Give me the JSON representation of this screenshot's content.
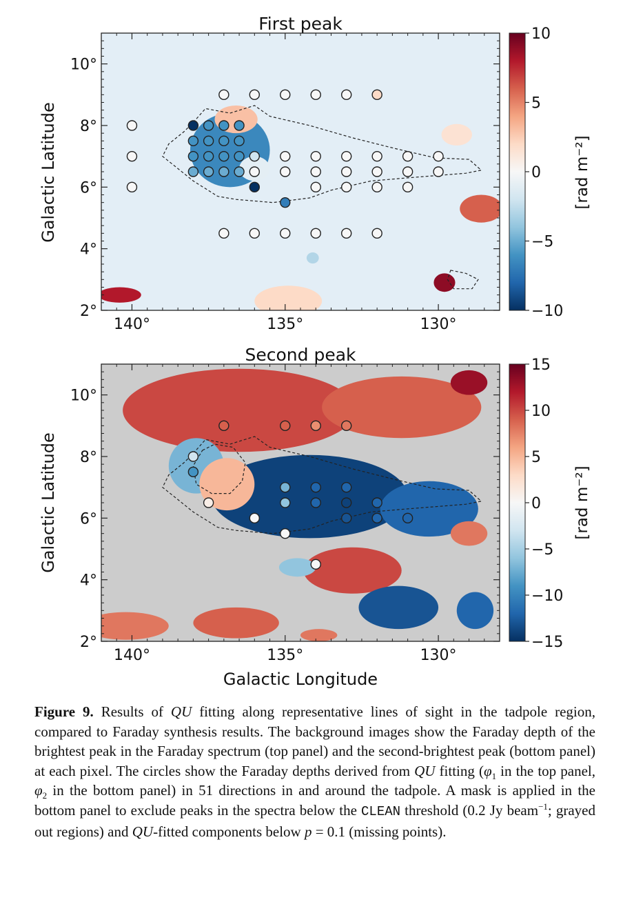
{
  "figure": {
    "x_axis_label": "Galactic Longitude",
    "y_axis_label": "Galactic Latitude",
    "colorbar_unit": "[rad m⁻²]"
  },
  "chart_data": [
    {
      "type": "heatmap",
      "title": "First peak",
      "xlabel": "",
      "ylabel": "Galactic Latitude",
      "xlim": [
        141,
        128
      ],
      "ylim": [
        2,
        11
      ],
      "x_ticks": [
        "140°",
        "135°",
        "130°"
      ],
      "x_tick_values": [
        140,
        135,
        130
      ],
      "y_ticks": [
        "2°",
        "4°",
        "6°",
        "8°",
        "10°"
      ],
      "y_tick_values": [
        2,
        4,
        6,
        8,
        10
      ],
      "colorbar": {
        "min": -10,
        "max": 10,
        "ticks": [
          "−10",
          "−5",
          "0",
          "5",
          "10"
        ],
        "tick_values": [
          -10,
          -5,
          0,
          5,
          10
        ],
        "label": "[rad m⁻²]",
        "colormap": "RdBu_r"
      },
      "background_regions": [
        {
          "kind": "ellipse",
          "l": 136.8,
          "b": 7.2,
          "rl": 1.3,
          "rb": 1.2,
          "value": -6.5
        },
        {
          "kind": "ellipse",
          "l": 136.6,
          "b": 8.2,
          "rl": 0.7,
          "rb": 0.45,
          "value": 3
        },
        {
          "kind": "ellipse",
          "l": 136.0,
          "b": 6.6,
          "rl": 0.5,
          "rb": 0.4,
          "value": -1
        },
        {
          "kind": "ellipse",
          "l": 128.6,
          "b": 5.3,
          "rl": 0.7,
          "rb": 0.45,
          "value": 6
        },
        {
          "kind": "ellipse",
          "l": 129.4,
          "b": 7.7,
          "rl": 0.5,
          "rb": 0.35,
          "value": 1.5
        },
        {
          "kind": "ellipse",
          "l": 129.8,
          "b": 2.9,
          "rl": 0.35,
          "rb": 0.3,
          "value": 9
        },
        {
          "kind": "ellipse",
          "l": 134.9,
          "b": 2.3,
          "rl": 1.1,
          "rb": 0.5,
          "value": 2
        },
        {
          "kind": "ellipse",
          "l": 140.4,
          "b": 2.5,
          "rl": 0.7,
          "rb": 0.25,
          "value": 8
        },
        {
          "kind": "ellipse",
          "l": 134.1,
          "b": 3.7,
          "rl": 0.2,
          "rb": 0.18,
          "value": -3
        }
      ],
      "contour": [
        [
          138.0,
          8.1
        ],
        [
          137.6,
          8.55
        ],
        [
          136.8,
          8.4
        ],
        [
          136.0,
          8.65
        ],
        [
          135.5,
          8.3
        ],
        [
          134.2,
          8.0
        ],
        [
          132.8,
          7.6
        ],
        [
          131.4,
          7.25
        ],
        [
          130.1,
          6.95
        ],
        [
          129.0,
          6.9
        ],
        [
          128.6,
          6.55
        ],
        [
          129.1,
          6.45
        ],
        [
          131.0,
          6.3
        ],
        [
          132.2,
          6.2
        ],
        [
          133.5,
          5.9
        ],
        [
          134.2,
          5.65
        ],
        [
          135.4,
          5.5
        ],
        [
          136.6,
          5.6
        ],
        [
          137.2,
          5.7
        ],
        [
          138.0,
          6.2
        ],
        [
          138.5,
          6.6
        ],
        [
          139.0,
          7.0
        ],
        [
          138.8,
          7.4
        ],
        [
          138.3,
          7.8
        ]
      ],
      "contour2": [
        [
          129.6,
          3.3
        ],
        [
          129.1,
          3.2
        ],
        [
          128.7,
          3.0
        ],
        [
          128.9,
          2.7
        ],
        [
          129.5,
          2.7
        ],
        [
          129.7,
          3.0
        ]
      ],
      "points": [
        {
          "l": 137.0,
          "b": 9.0,
          "v": 0
        },
        {
          "l": 136.0,
          "b": 9.0,
          "v": 0
        },
        {
          "l": 135.0,
          "b": 9.0,
          "v": 0
        },
        {
          "l": 134.0,
          "b": 9.0,
          "v": 0
        },
        {
          "l": 133.0,
          "b": 9.0,
          "v": 0
        },
        {
          "l": 132.0,
          "b": 9.0,
          "v": 2
        },
        {
          "l": 140.0,
          "b": 8.0,
          "v": 0
        },
        {
          "l": 138.0,
          "b": 8.0,
          "v": -10
        },
        {
          "l": 137.5,
          "b": 8.0,
          "v": -6
        },
        {
          "l": 137.0,
          "b": 8.0,
          "v": -6
        },
        {
          "l": 136.5,
          "b": 8.0,
          "v": -6
        },
        {
          "l": 138.0,
          "b": 7.5,
          "v": -6
        },
        {
          "l": 137.5,
          "b": 7.5,
          "v": -6
        },
        {
          "l": 137.0,
          "b": 7.5,
          "v": -6
        },
        {
          "l": 136.5,
          "b": 7.5,
          "v": -6
        },
        {
          "l": 140.0,
          "b": 7.0,
          "v": 0
        },
        {
          "l": 138.0,
          "b": 7.0,
          "v": -6
        },
        {
          "l": 137.5,
          "b": 7.0,
          "v": -6
        },
        {
          "l": 137.0,
          "b": 7.0,
          "v": -6
        },
        {
          "l": 136.5,
          "b": 7.0,
          "v": -6
        },
        {
          "l": 136.0,
          "b": 7.0,
          "v": -2
        },
        {
          "l": 135.0,
          "b": 7.0,
          "v": 0
        },
        {
          "l": 134.0,
          "b": 7.0,
          "v": 0
        },
        {
          "l": 133.0,
          "b": 7.0,
          "v": 0
        },
        {
          "l": 132.0,
          "b": 7.0,
          "v": 0
        },
        {
          "l": 131.0,
          "b": 7.0,
          "v": 0
        },
        {
          "l": 130.0,
          "b": 7.0,
          "v": 0
        },
        {
          "l": 138.0,
          "b": 6.5,
          "v": -5
        },
        {
          "l": 137.5,
          "b": 6.5,
          "v": -5
        },
        {
          "l": 137.0,
          "b": 6.5,
          "v": -5
        },
        {
          "l": 136.5,
          "b": 6.5,
          "v": -5
        },
        {
          "l": 136.0,
          "b": 6.5,
          "v": 0
        },
        {
          "l": 135.0,
          "b": 6.5,
          "v": 0
        },
        {
          "l": 134.0,
          "b": 6.5,
          "v": 0
        },
        {
          "l": 133.0,
          "b": 6.5,
          "v": 0
        },
        {
          "l": 132.0,
          "b": 6.5,
          "v": 0
        },
        {
          "l": 131.0,
          "b": 6.5,
          "v": 0
        },
        {
          "l": 130.0,
          "b": 6.5,
          "v": 0
        },
        {
          "l": 140.0,
          "b": 6.0,
          "v": 0
        },
        {
          "l": 136.0,
          "b": 6.0,
          "v": -10
        },
        {
          "l": 134.0,
          "b": 6.0,
          "v": 0
        },
        {
          "l": 133.0,
          "b": 6.0,
          "v": 0
        },
        {
          "l": 132.0,
          "b": 6.0,
          "v": 0
        },
        {
          "l": 131.0,
          "b": 6.0,
          "v": 0
        },
        {
          "l": 135.0,
          "b": 5.5,
          "v": -7
        },
        {
          "l": 137.0,
          "b": 4.5,
          "v": 0
        },
        {
          "l": 136.0,
          "b": 4.5,
          "v": 0
        },
        {
          "l": 135.0,
          "b": 4.5,
          "v": 0
        },
        {
          "l": 134.0,
          "b": 4.5,
          "v": 0
        },
        {
          "l": 133.0,
          "b": 4.5,
          "v": 0
        },
        {
          "l": 132.0,
          "b": 4.5,
          "v": 0
        }
      ]
    },
    {
      "type": "heatmap",
      "title": "Second peak",
      "xlabel": "Galactic Longitude",
      "ylabel": "Galactic Latitude",
      "xlim": [
        141,
        128
      ],
      "ylim": [
        2,
        11
      ],
      "x_ticks": [
        "140°",
        "135°",
        "130°"
      ],
      "x_tick_values": [
        140,
        135,
        130
      ],
      "y_ticks": [
        "2°",
        "4°",
        "6°",
        "8°",
        "10°"
      ],
      "y_tick_values": [
        2,
        4,
        6,
        8,
        10
      ],
      "colorbar": {
        "min": -15,
        "max": 15,
        "ticks": [
          "−15",
          "−10",
          "−5",
          "0",
          "5",
          "10",
          "15"
        ],
        "tick_values": [
          -15,
          -10,
          -5,
          0,
          5,
          10,
          15
        ],
        "label": "[rad m⁻²]",
        "colormap": "RdBu_r"
      },
      "mask_color": "#cccccc",
      "background_regions": [
        {
          "kind": "ellipse",
          "l": 136.5,
          "b": 9.5,
          "rl": 3.8,
          "rb": 1.35,
          "value": 10
        },
        {
          "kind": "ellipse",
          "l": 131.2,
          "b": 9.6,
          "rl": 2.6,
          "rb": 1.0,
          "value": 9
        },
        {
          "kind": "ellipse",
          "l": 129.0,
          "b": 10.4,
          "rl": 0.6,
          "rb": 0.4,
          "value": 13
        },
        {
          "kind": "ellipse",
          "l": 134.2,
          "b": 6.7,
          "rl": 3.2,
          "rb": 1.35,
          "value": -14
        },
        {
          "kind": "ellipse",
          "l": 130.3,
          "b": 6.3,
          "rl": 1.6,
          "rb": 0.9,
          "value": -12
        },
        {
          "kind": "ellipse",
          "l": 137.9,
          "b": 7.7,
          "rl": 0.9,
          "rb": 0.9,
          "value": -7
        },
        {
          "kind": "ellipse",
          "l": 136.9,
          "b": 7.1,
          "rl": 0.9,
          "rb": 0.85,
          "value": 5
        },
        {
          "kind": "ellipse",
          "l": 132.8,
          "b": 4.3,
          "rl": 1.6,
          "rb": 0.75,
          "value": 10
        },
        {
          "kind": "ellipse",
          "l": 129.0,
          "b": 5.5,
          "rl": 0.6,
          "rb": 0.4,
          "value": 8
        },
        {
          "kind": "ellipse",
          "l": 131.3,
          "b": 3.1,
          "rl": 1.3,
          "rb": 0.7,
          "value": -13
        },
        {
          "kind": "ellipse",
          "l": 128.8,
          "b": 3.0,
          "rl": 0.6,
          "rb": 0.6,
          "value": -12
        },
        {
          "kind": "ellipse",
          "l": 134.6,
          "b": 4.4,
          "rl": 0.6,
          "rb": 0.3,
          "value": -6
        },
        {
          "kind": "ellipse",
          "l": 140.2,
          "b": 2.5,
          "rl": 1.4,
          "rb": 0.45,
          "value": 8
        },
        {
          "kind": "ellipse",
          "l": 136.6,
          "b": 2.6,
          "rl": 1.4,
          "rb": 0.5,
          "value": 9
        },
        {
          "kind": "ellipse",
          "l": 133.9,
          "b": 2.2,
          "rl": 0.6,
          "rb": 0.2,
          "value": 8
        }
      ],
      "contour": [
        [
          138.0,
          8.1
        ],
        [
          137.6,
          8.55
        ],
        [
          136.8,
          8.4
        ],
        [
          136.0,
          8.65
        ],
        [
          135.5,
          8.3
        ],
        [
          134.2,
          8.0
        ],
        [
          132.8,
          7.6
        ],
        [
          131.4,
          7.25
        ],
        [
          130.1,
          6.95
        ],
        [
          129.0,
          6.9
        ],
        [
          128.6,
          6.55
        ],
        [
          129.1,
          6.45
        ],
        [
          131.0,
          6.3
        ],
        [
          132.2,
          6.2
        ],
        [
          133.5,
          5.9
        ],
        [
          134.2,
          5.65
        ],
        [
          135.4,
          5.5
        ],
        [
          136.6,
          5.6
        ],
        [
          137.2,
          5.7
        ],
        [
          138.0,
          6.2
        ],
        [
          138.5,
          6.6
        ],
        [
          139.0,
          7.0
        ],
        [
          138.8,
          7.4
        ],
        [
          138.3,
          7.8
        ]
      ],
      "contour2": [
        [
          137.7,
          8.2
        ],
        [
          137.3,
          8.4
        ],
        [
          136.7,
          8.3
        ],
        [
          136.3,
          7.8
        ],
        [
          136.4,
          7.2
        ],
        [
          136.8,
          6.8
        ],
        [
          137.4,
          6.8
        ],
        [
          137.9,
          7.1
        ],
        [
          138.0,
          7.7
        ]
      ],
      "points": [
        {
          "l": 137.0,
          "b": 9.0,
          "v": 9
        },
        {
          "l": 135.0,
          "b": 9.0,
          "v": 9
        },
        {
          "l": 134.0,
          "b": 9.0,
          "v": 7
        },
        {
          "l": 133.0,
          "b": 9.0,
          "v": 8
        },
        {
          "l": 138.0,
          "b": 8.0,
          "v": -3
        },
        {
          "l": 138.0,
          "b": 7.5,
          "v": -9
        },
        {
          "l": 135.0,
          "b": 7.0,
          "v": -7
        },
        {
          "l": 134.0,
          "b": 7.0,
          "v": -12
        },
        {
          "l": 133.0,
          "b": 7.0,
          "v": -12
        },
        {
          "l": 137.5,
          "b": 6.5,
          "v": 1
        },
        {
          "l": 135.0,
          "b": 6.5,
          "v": -6
        },
        {
          "l": 134.0,
          "b": 6.5,
          "v": -12
        },
        {
          "l": 133.0,
          "b": 6.5,
          "v": -14
        },
        {
          "l": 132.0,
          "b": 6.5,
          "v": -12
        },
        {
          "l": 136.0,
          "b": 6.0,
          "v": 0
        },
        {
          "l": 133.0,
          "b": 6.0,
          "v": -13
        },
        {
          "l": 132.0,
          "b": 6.0,
          "v": -12
        },
        {
          "l": 131.0,
          "b": 6.0,
          "v": -12
        },
        {
          "l": 135.0,
          "b": 5.5,
          "v": 0
        },
        {
          "l": 134.0,
          "b": 4.5,
          "v": 0
        }
      ]
    }
  ],
  "caption": {
    "label": "Figure 9.",
    "s1": " Results of ",
    "qu1": "QU",
    "s2": " fitting along representative lines of sight in the tadpole region, compared to Faraday synthesis results. The background images show the Faraday depth of the brightest peak in the Faraday spectrum (top panel) and the second-brightest peak (bottom panel) at each pixel. The circles show the Faraday depths derived from ",
    "qu2": "QU",
    "s3": " fitting (",
    "phi": "φ",
    "sub1": "1",
    "s4": " in the top panel, ",
    "sub2": "2",
    "s5": " in the bottom panel) in 51 directions in and around the tadpole. A mask is applied in the bottom panel to exclude peaks in the spectra below the ",
    "clean": "CLEAN",
    "s6": " threshold (0.2 Jy beam",
    "sup": "−1",
    "s7": "; grayed out regions) and ",
    "qu3": "QU",
    "s8": "-fitted components below ",
    "pvar": "p",
    "s9": " = 0.1 (missing points)."
  }
}
